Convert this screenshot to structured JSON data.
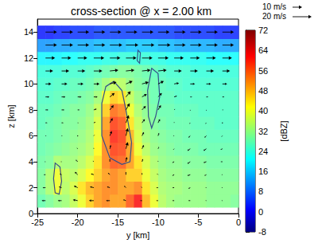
{
  "chart_data": {
    "type": "heatmap",
    "title": "cross-section @ x = 2.00 km",
    "x_label": "y [km]",
    "y_label": "z [km]",
    "xlim": [
      -25,
      0
    ],
    "xticks": [
      -25,
      -20,
      -15,
      -10,
      -5,
      0
    ],
    "ylim": [
      0,
      15
    ],
    "yticks": [
      0,
      2,
      4,
      6,
      8,
      10,
      12,
      14
    ],
    "grid": false,
    "cells": {
      "y": [
        -24.5,
        -23.5,
        -22.5,
        -21.5,
        -20.5,
        -19.5,
        -18.5,
        -17.5,
        -16.5,
        -15.5,
        -14.5,
        -13.5,
        -12.5,
        -11.5,
        -10.5,
        -9.5,
        -8.5,
        -7.5,
        -6.5,
        -5.5,
        -4.5,
        -3.5,
        -2.5,
        -1.5,
        -0.5
      ],
      "z": [
        1,
        2,
        3,
        4,
        5,
        6,
        7,
        8,
        9,
        10,
        11,
        12,
        13,
        14
      ],
      "values": [
        [
          28,
          30,
          32,
          33,
          36,
          40,
          46,
          50,
          52,
          50,
          50,
          56,
          62,
          48,
          40,
          35,
          33,
          32,
          32,
          32,
          32,
          31,
          31,
          31,
          30
        ],
        [
          30,
          34,
          40,
          35,
          38,
          44,
          48,
          50,
          52,
          52,
          50,
          50,
          52,
          44,
          38,
          34,
          33,
          33,
          32,
          32,
          32,
          31,
          31,
          31,
          31
        ],
        [
          30,
          34,
          40,
          36,
          35,
          38,
          42,
          46,
          50,
          52,
          50,
          46,
          46,
          40,
          36,
          33,
          32,
          32,
          31,
          31,
          31,
          30,
          30,
          30,
          30
        ],
        [
          29,
          30,
          34,
          33,
          33,
          35,
          38,
          44,
          52,
          56,
          55,
          50,
          44,
          38,
          34,
          32,
          31,
          31,
          30,
          30,
          30,
          29,
          29,
          29,
          29
        ],
        [
          28,
          29,
          30,
          31,
          32,
          33,
          35,
          42,
          52,
          58,
          57,
          50,
          40,
          35,
          32,
          31,
          30,
          29,
          29,
          29,
          28,
          28,
          28,
          28,
          28
        ],
        [
          28,
          28,
          29,
          30,
          31,
          32,
          34,
          40,
          52,
          60,
          58,
          48,
          38,
          33,
          31,
          30,
          29,
          29,
          28,
          28,
          28,
          27,
          27,
          27,
          27
        ],
        [
          27,
          28,
          29,
          30,
          30,
          31,
          33,
          38,
          50,
          58,
          56,
          44,
          36,
          32,
          30,
          29,
          28,
          28,
          28,
          27,
          27,
          27,
          26,
          26,
          26
        ],
        [
          27,
          27,
          28,
          29,
          30,
          30,
          32,
          36,
          46,
          54,
          52,
          40,
          34,
          31,
          29,
          28,
          28,
          27,
          27,
          27,
          26,
          26,
          26,
          26,
          26
        ],
        [
          26,
          26,
          27,
          28,
          28,
          29,
          30,
          33,
          40,
          46,
          44,
          36,
          32,
          30,
          28,
          27,
          27,
          26,
          26,
          26,
          26,
          26,
          26,
          26,
          26
        ],
        [
          25,
          25,
          26,
          26,
          27,
          27,
          28,
          30,
          33,
          36,
          35,
          32,
          30,
          29,
          28,
          27,
          26,
          26,
          25,
          25,
          25,
          25,
          25,
          25,
          25
        ],
        [
          24,
          24,
          24,
          25,
          25,
          25,
          26,
          27,
          28,
          29,
          30,
          30,
          29,
          28,
          27,
          26,
          25,
          25,
          25,
          24,
          24,
          24,
          24,
          24,
          24
        ],
        [
          20,
          20,
          20,
          21,
          21,
          22,
          22,
          22,
          23,
          23,
          24,
          24,
          24,
          24,
          23,
          23,
          22,
          22,
          22,
          22,
          22,
          21,
          21,
          21,
          21
        ],
        [
          12,
          12,
          13,
          13,
          14,
          14,
          14,
          15,
          15,
          15,
          15,
          16,
          16,
          16,
          16,
          15,
          15,
          14,
          14,
          14,
          14,
          14,
          13,
          13,
          13
        ],
        [
          2,
          2,
          3,
          3,
          4,
          4,
          4,
          5,
          5,
          5,
          5,
          5,
          5,
          5,
          5,
          5,
          5,
          4,
          4,
          4,
          4,
          4,
          3,
          3,
          3
        ]
      ]
    },
    "colorbar": {
      "label": "[dBZ]",
      "range": [
        -8,
        72
      ],
      "ticks": [
        -8,
        0,
        8,
        16,
        24,
        32,
        40,
        48,
        56,
        64,
        72
      ]
    },
    "vectors": {
      "y": [
        -24,
        -22,
        -20,
        -18,
        -16,
        -14,
        -12,
        -10,
        -8,
        -6,
        -4,
        -2
      ],
      "z": [
        1,
        2,
        3,
        4,
        5,
        6,
        7,
        8,
        9,
        10,
        11,
        12,
        13,
        14
      ],
      "u": [
        [
          -4,
          -4,
          -5,
          -5,
          -4,
          -3,
          -2,
          -2,
          -2,
          -2,
          -1,
          -1
        ],
        [
          -3,
          -3,
          -4,
          -4,
          -3,
          -2,
          -1,
          -2,
          -2,
          -2,
          -1,
          -1
        ],
        [
          -2,
          -2,
          -3,
          -3,
          -2,
          0,
          0,
          -1,
          -2,
          -3,
          -2,
          -1
        ],
        [
          -1,
          -1,
          -2,
          -1,
          0,
          1,
          1,
          0,
          -2,
          -3,
          -3,
          -2
        ],
        [
          0,
          0,
          -1,
          0,
          1,
          2,
          2,
          1,
          -1,
          -3,
          -3,
          -2
        ],
        [
          1,
          1,
          0,
          1,
          2,
          2,
          2,
          1,
          -1,
          -2,
          -2,
          -1
        ],
        [
          2,
          2,
          1,
          2,
          3,
          3,
          3,
          2,
          0,
          -1,
          -1,
          0
        ],
        [
          3,
          3,
          2,
          3,
          4,
          4,
          4,
          3,
          1,
          0,
          0,
          1
        ],
        [
          4,
          4,
          4,
          4,
          5,
          5,
          5,
          4,
          3,
          2,
          2,
          2
        ],
        [
          6,
          6,
          6,
          6,
          7,
          7,
          7,
          6,
          5,
          5,
          5,
          5
        ],
        [
          8,
          8,
          8,
          9,
          9,
          9,
          9,
          9,
          8,
          8,
          8,
          8
        ],
        [
          10,
          10,
          10,
          11,
          11,
          11,
          11,
          11,
          10,
          10,
          10,
          10
        ],
        [
          12,
          12,
          12,
          12,
          13,
          13,
          13,
          13,
          12,
          12,
          12,
          12
        ],
        [
          12,
          12,
          12,
          12,
          12,
          12,
          12,
          12,
          12,
          12,
          12,
          12
        ]
      ],
      "w": [
        [
          0,
          0,
          1,
          0,
          0,
          1,
          0,
          0,
          0,
          0,
          0,
          0
        ],
        [
          0,
          1,
          2,
          1,
          1,
          2,
          1,
          0,
          0,
          -1,
          0,
          0
        ],
        [
          0,
          1,
          3,
          1,
          2,
          3,
          2,
          1,
          -1,
          -1,
          -1,
          0
        ],
        [
          0,
          0,
          2,
          1,
          3,
          5,
          3,
          1,
          -1,
          -2,
          -1,
          0
        ],
        [
          0,
          0,
          1,
          1,
          4,
          7,
          4,
          2,
          -1,
          -2,
          -2,
          -1
        ],
        [
          0,
          0,
          0,
          1,
          5,
          8,
          4,
          3,
          0,
          -2,
          -2,
          -1
        ],
        [
          0,
          0,
          0,
          1,
          5,
          8,
          4,
          4,
          1,
          -1,
          -1,
          0
        ],
        [
          0,
          0,
          0,
          1,
          5,
          7,
          4,
          5,
          1,
          -1,
          -1,
          0
        ],
        [
          0,
          0,
          0,
          0,
          4,
          6,
          3,
          4,
          1,
          0,
          0,
          0
        ],
        [
          0,
          0,
          0,
          0,
          2,
          3,
          2,
          3,
          1,
          0,
          0,
          0
        ],
        [
          0,
          0,
          0,
          0,
          1,
          1,
          1,
          1,
          0,
          0,
          0,
          0
        ],
        [
          0,
          0,
          0,
          0,
          0,
          0,
          0,
          0,
          0,
          0,
          0,
          0
        ],
        [
          0,
          0,
          0,
          0,
          0,
          0,
          0,
          0,
          0,
          0,
          0,
          0
        ],
        [
          0,
          0,
          0,
          0,
          0,
          0,
          0,
          0,
          0,
          0,
          0,
          0
        ]
      ],
      "key": [
        {
          "label": "10 m/s",
          "speed": 10
        },
        {
          "label": "20 m/s",
          "speed": 20
        }
      ]
    },
    "contours": [
      [
        [
          -16.5,
          9.8
        ],
        [
          -15.5,
          10.2
        ],
        [
          -14.5,
          9.5
        ],
        [
          -14,
          8
        ],
        [
          -13.3,
          5.5
        ],
        [
          -13.5,
          4
        ],
        [
          -14.5,
          3.8
        ],
        [
          -16,
          4.3
        ],
        [
          -17,
          6
        ],
        [
          -17,
          8.5
        ]
      ],
      [
        [
          -10.8,
          11.2
        ],
        [
          -10,
          10.8
        ],
        [
          -9.8,
          9
        ],
        [
          -10.3,
          7.5
        ],
        [
          -10.8,
          6.6
        ],
        [
          -11.2,
          7.5
        ],
        [
          -11.3,
          9.5
        ]
      ],
      [
        [
          -12.5,
          12.6
        ],
        [
          -12.2,
          12.4
        ],
        [
          -12.3,
          11.6
        ],
        [
          -12.6,
          11.8
        ]
      ],
      [
        [
          -22.8,
          3.9
        ],
        [
          -22.2,
          3.6
        ],
        [
          -22,
          2.5
        ],
        [
          -22.3,
          1.5
        ],
        [
          -22.8,
          1.6
        ],
        [
          -23,
          2.7
        ]
      ]
    ]
  }
}
